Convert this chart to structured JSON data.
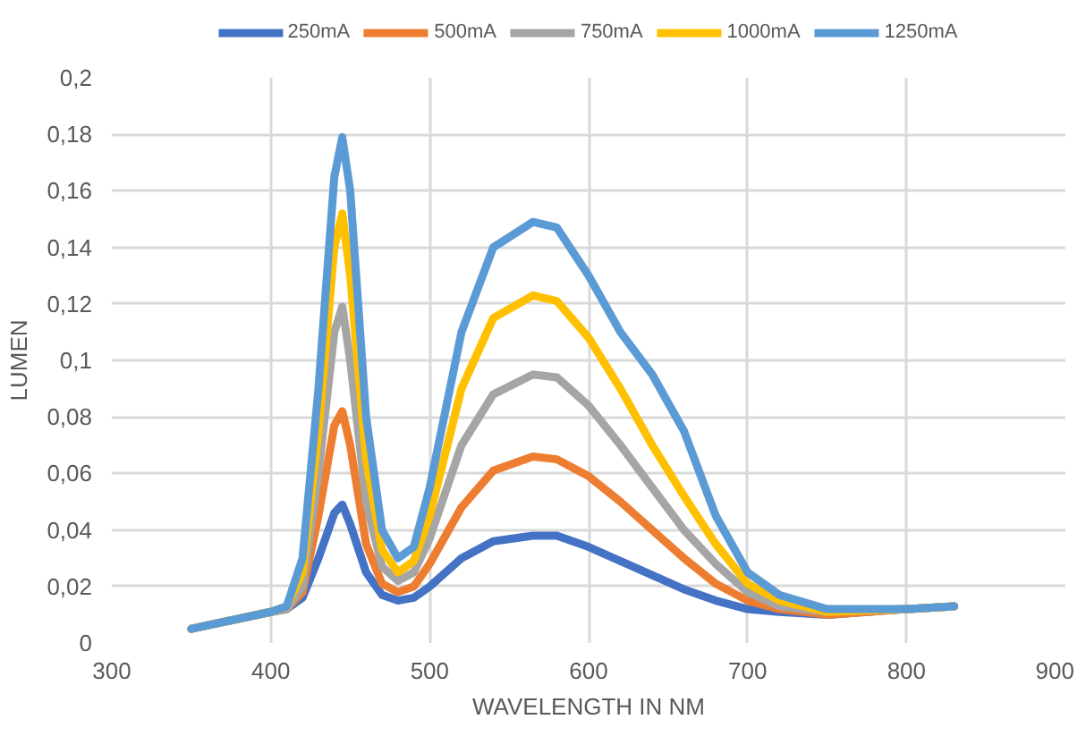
{
  "chart_data": {
    "type": "line",
    "xlabel": "WAVELENGTH IN NM",
    "ylabel": "LUMEN",
    "x": [
      350,
      400,
      410,
      420,
      430,
      440,
      445,
      450,
      460,
      470,
      480,
      490,
      500,
      520,
      540,
      565,
      580,
      600,
      620,
      640,
      660,
      680,
      700,
      720,
      750,
      800,
      830
    ],
    "series": [
      {
        "name": "250mA",
        "color": "#4472c4",
        "values": [
          0.005,
          0.011,
          0.012,
          0.016,
          0.03,
          0.046,
          0.049,
          0.042,
          0.025,
          0.017,
          0.015,
          0.016,
          0.02,
          0.03,
          0.036,
          0.038,
          0.038,
          0.034,
          0.029,
          0.024,
          0.019,
          0.015,
          0.012,
          0.011,
          0.01,
          0.012,
          0.013
        ]
      },
      {
        "name": "500mA",
        "color": "#ed7d31",
        "values": [
          0.005,
          0.011,
          0.012,
          0.018,
          0.045,
          0.077,
          0.082,
          0.07,
          0.035,
          0.021,
          0.018,
          0.02,
          0.028,
          0.048,
          0.061,
          0.066,
          0.065,
          0.059,
          0.05,
          0.04,
          0.03,
          0.021,
          0.015,
          0.012,
          0.01,
          0.012,
          0.013
        ]
      },
      {
        "name": "750mA",
        "color": "#a5a5a5",
        "values": [
          0.005,
          0.011,
          0.012,
          0.02,
          0.06,
          0.11,
          0.119,
          0.1,
          0.05,
          0.027,
          0.022,
          0.025,
          0.037,
          0.07,
          0.088,
          0.095,
          0.094,
          0.084,
          0.07,
          0.055,
          0.04,
          0.028,
          0.018,
          0.013,
          0.011,
          0.012,
          0.013
        ]
      },
      {
        "name": "1000mA",
        "color": "#ffc000",
        "values": [
          0.005,
          0.011,
          0.013,
          0.025,
          0.075,
          0.14,
          0.152,
          0.13,
          0.065,
          0.033,
          0.025,
          0.029,
          0.045,
          0.09,
          0.115,
          0.123,
          0.121,
          0.108,
          0.09,
          0.07,
          0.052,
          0.035,
          0.021,
          0.015,
          0.011,
          0.012,
          0.013
        ]
      },
      {
        "name": "1250mA",
        "color": "#5b9bd5",
        "values": [
          0.005,
          0.011,
          0.013,
          0.03,
          0.09,
          0.165,
          0.179,
          0.16,
          0.08,
          0.04,
          0.03,
          0.034,
          0.055,
          0.11,
          0.14,
          0.149,
          0.147,
          0.13,
          0.11,
          0.095,
          0.075,
          0.045,
          0.025,
          0.017,
          0.012,
          0.012,
          0.013
        ]
      }
    ],
    "xlim": [
      300,
      900
    ],
    "xticks": [
      300,
      400,
      500,
      600,
      700,
      800,
      900
    ],
    "ylim": [
      0,
      0.2
    ],
    "yticks": [
      0,
      {
        "value": 0.02,
        "label": "0,02"
      },
      {
        "value": 0.04,
        "label": "0,04"
      },
      {
        "value": 0.06,
        "label": "0,06"
      },
      {
        "value": 0.08,
        "label": "0,08"
      },
      {
        "value": 0.1,
        "label": "0,1"
      },
      {
        "value": 0.12,
        "label": "0,12"
      },
      {
        "value": 0.14,
        "label": "0,14"
      },
      {
        "value": 0.16,
        "label": "0,16"
      },
      {
        "value": 0.18,
        "label": "0,18"
      },
      {
        "value": 0.2,
        "label": "0,2"
      }
    ],
    "grid": true,
    "legend": "top",
    "marker": "none",
    "line_style": "solid"
  }
}
